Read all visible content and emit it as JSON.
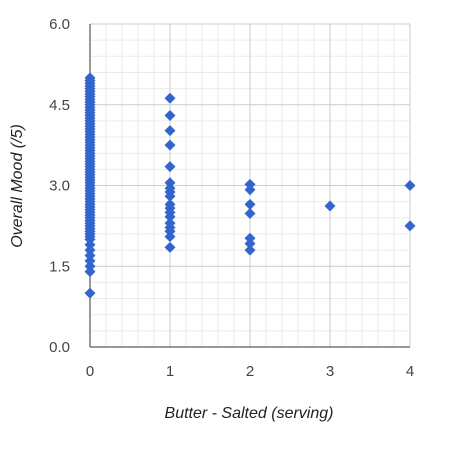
{
  "chart_data": {
    "type": "scatter",
    "title": "",
    "xlabel": "Butter - Salted (serving)",
    "ylabel": "Overall Mood (/5)",
    "xlim": [
      0,
      4
    ],
    "ylim": [
      0,
      6
    ],
    "x_ticks": [
      "0",
      "1",
      "2",
      "3",
      "4"
    ],
    "y_ticks": [
      "0.0",
      "1.5",
      "3.0",
      "4.5",
      "6.0"
    ],
    "x_tick_values": [
      0,
      1,
      2,
      3,
      4
    ],
    "y_tick_values": [
      0,
      1.5,
      3.0,
      4.5,
      6.0
    ],
    "x_minor_per_major": 5,
    "y_minor_per_major": 5,
    "grid": true,
    "legend": "none",
    "colors": {
      "marker": "#3366cc",
      "major_grid": "#cccccc",
      "minor_grid": "#ebebeb",
      "baseline": "#333333"
    },
    "series": [
      {
        "marker": "diamond",
        "points": [
          [
            0,
            5.0
          ],
          [
            0,
            4.95
          ],
          [
            0,
            4.9
          ],
          [
            0,
            4.85
          ],
          [
            0,
            4.8
          ],
          [
            0,
            4.75
          ],
          [
            0,
            4.7
          ],
          [
            0,
            4.65
          ],
          [
            0,
            4.6
          ],
          [
            0,
            4.55
          ],
          [
            0,
            4.5
          ],
          [
            0,
            4.45
          ],
          [
            0,
            4.4
          ],
          [
            0,
            4.35
          ],
          [
            0,
            4.3
          ],
          [
            0,
            4.25
          ],
          [
            0,
            4.2
          ],
          [
            0,
            4.15
          ],
          [
            0,
            4.1
          ],
          [
            0,
            4.05
          ],
          [
            0,
            4.0
          ],
          [
            0,
            3.95
          ],
          [
            0,
            3.9
          ],
          [
            0,
            3.85
          ],
          [
            0,
            3.8
          ],
          [
            0,
            3.75
          ],
          [
            0,
            3.7
          ],
          [
            0,
            3.65
          ],
          [
            0,
            3.6
          ],
          [
            0,
            3.55
          ],
          [
            0,
            3.5
          ],
          [
            0,
            3.45
          ],
          [
            0,
            3.4
          ],
          [
            0,
            3.35
          ],
          [
            0,
            3.3
          ],
          [
            0,
            3.25
          ],
          [
            0,
            3.2
          ],
          [
            0,
            3.15
          ],
          [
            0,
            3.1
          ],
          [
            0,
            3.05
          ],
          [
            0,
            3.0
          ],
          [
            0,
            2.95
          ],
          [
            0,
            2.9
          ],
          [
            0,
            2.85
          ],
          [
            0,
            2.8
          ],
          [
            0,
            2.75
          ],
          [
            0,
            2.7
          ],
          [
            0,
            2.65
          ],
          [
            0,
            2.6
          ],
          [
            0,
            2.55
          ],
          [
            0,
            2.5
          ],
          [
            0,
            2.45
          ],
          [
            0,
            2.4
          ],
          [
            0,
            2.35
          ],
          [
            0,
            2.3
          ],
          [
            0,
            2.25
          ],
          [
            0,
            2.2
          ],
          [
            0,
            2.15
          ],
          [
            0,
            2.1
          ],
          [
            0,
            2.05
          ],
          [
            0,
            2.0
          ],
          [
            0,
            1.9
          ],
          [
            0,
            1.8
          ],
          [
            0,
            1.7
          ],
          [
            0,
            1.6
          ],
          [
            0,
            1.5
          ],
          [
            0,
            1.4
          ],
          [
            0,
            1.0
          ],
          [
            1,
            4.62
          ],
          [
            1,
            4.3
          ],
          [
            1,
            4.02
          ],
          [
            1,
            3.75
          ],
          [
            1,
            3.35
          ],
          [
            1,
            3.05
          ],
          [
            1,
            2.95
          ],
          [
            1,
            2.88
          ],
          [
            1,
            2.8
          ],
          [
            1,
            2.65
          ],
          [
            1,
            2.58
          ],
          [
            1,
            2.5
          ],
          [
            1,
            2.42
          ],
          [
            1,
            2.3
          ],
          [
            1,
            2.22
          ],
          [
            1,
            2.15
          ],
          [
            1,
            2.05
          ],
          [
            1,
            1.85
          ],
          [
            2,
            3.02
          ],
          [
            2,
            2.92
          ],
          [
            2,
            2.65
          ],
          [
            2,
            2.48
          ],
          [
            2,
            2.02
          ],
          [
            2,
            1.92
          ],
          [
            2,
            1.8
          ],
          [
            3,
            2.62
          ],
          [
            4,
            3.0
          ],
          [
            4,
            2.25
          ]
        ]
      }
    ]
  }
}
